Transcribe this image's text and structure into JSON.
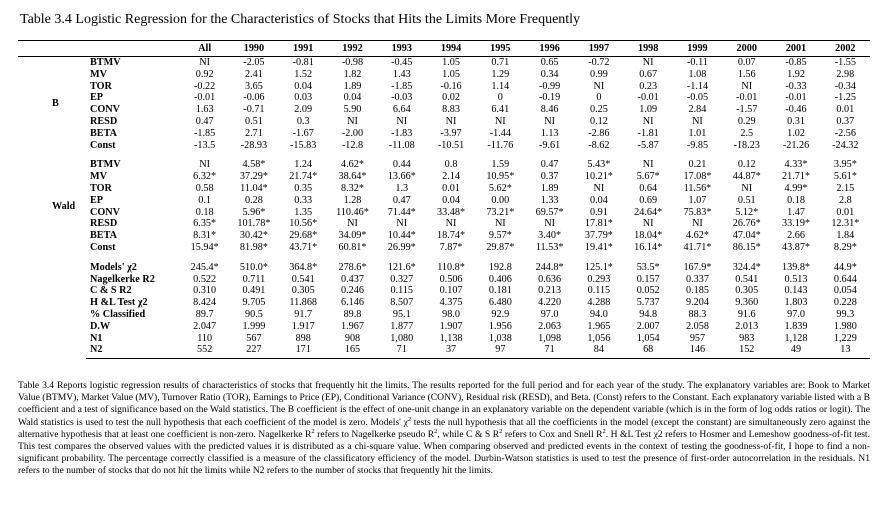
{
  "title": "Table 3.4 Logistic Regression for the Characteristics of Stocks that Hits the Limits More Frequently",
  "columns": [
    "All",
    "1990",
    "1991",
    "1992",
    "1993",
    "1994",
    "1995",
    "1996",
    "1997",
    "1998",
    "1999",
    "2000",
    "2001",
    "2002"
  ],
  "sections": [
    {
      "group": "B",
      "rows": [
        {
          "label": "BTMV",
          "cells": [
            "NI",
            "-2.05",
            "-0.81",
            "-0.98",
            "-0.45",
            "1.05",
            "0.71",
            "0.65",
            "-0.72",
            "NI",
            "-0.11",
            "0.07",
            "-0.85",
            "-1.55"
          ]
        },
        {
          "label": "MV",
          "cells": [
            "0.92",
            "2.41",
            "1.52",
            "1.82",
            "1.43",
            "1.05",
            "1.29",
            "0.34",
            "0.99",
            "0.67",
            "1.08",
            "1.56",
            "1.92",
            "2.98"
          ]
        },
        {
          "label": "TOR",
          "cells": [
            "-0.22",
            "3.65",
            "0.04",
            "1.89",
            "-1.85",
            "-0.16",
            "1.14",
            "-0.99",
            "NI",
            "0.23",
            "-1.14",
            "NI",
            "-0.33",
            "-0.34"
          ]
        },
        {
          "label": "EP",
          "cells": [
            "-0.01",
            "-0.06",
            "0.03",
            "0.04",
            "-0.03",
            "0.02",
            "0",
            "-0.19",
            "0",
            "-0.01",
            "-0.05",
            "-0.01",
            "-0.01",
            "-1.25"
          ]
        },
        {
          "label": "CONV",
          "cells": [
            "1.63",
            "-0.71",
            "2.09",
            "5.90",
            "6.64",
            "8.83",
            "6.41",
            "8.46",
            "0.25",
            "1.09",
            "2.84",
            "-1.57",
            "-0.46",
            "0.01"
          ]
        },
        {
          "label": "RESD",
          "cells": [
            "0.47",
            "0.51",
            "0.3",
            "NI",
            "NI",
            "NI",
            "NI",
            "NI",
            "0.12",
            "NI",
            "NI",
            "0.29",
            "0.31",
            "0.37"
          ]
        },
        {
          "label": "BETA",
          "cells": [
            "-1.85",
            "2.71",
            "-1.67",
            "-2.00",
            "-1.83",
            "-3.97",
            "-1.44",
            "1.13",
            "-2.86",
            "-1.81",
            "1.01",
            "2.5",
            "1.02",
            "-2.56"
          ]
        },
        {
          "label": "Const",
          "cells": [
            "-13.5",
            "-28.93",
            "-15.83",
            "-12.8",
            "-11.08",
            "-10.51",
            "-11.76",
            "-9.61",
            "-8.62",
            "-5.87",
            "-9.85",
            "-18.23",
            "-21.26",
            "-24.32"
          ]
        }
      ]
    },
    {
      "group": "Wald",
      "rows": [
        {
          "label": "BTMV",
          "cells": [
            "NI",
            "4.58*",
            "1.24",
            "4.62*",
            "0.44",
            "0.8",
            "1.59",
            "0.47",
            "5.43*",
            "NI",
            "0.21",
            "0.12",
            "4.33*",
            "3.95*"
          ]
        },
        {
          "label": "MV",
          "cells": [
            "6.32*",
            "37.29*",
            "21.74*",
            "38.64*",
            "13.66*",
            "2.14",
            "10.95*",
            "0.37",
            "10.21*",
            "5.67*",
            "17.08*",
            "44.87*",
            "21.71*",
            "5.61*"
          ]
        },
        {
          "label": "TOR",
          "cells": [
            "0.58",
            "11.04*",
            "0.35",
            "8.32*",
            "1.3",
            "0.01",
            "5.62*",
            "1.89",
            "NI",
            "0.64",
            "11.56*",
            "NI",
            "4.99*",
            "2.15"
          ]
        },
        {
          "label": "EP",
          "cells": [
            "0.1",
            "0.28",
            "0.33",
            "1.28",
            "0.47",
            "0.04",
            "0.00",
            "1.33",
            "0.04",
            "0.69",
            "1.07",
            "0.51",
            "0.18",
            "2.8"
          ]
        },
        {
          "label": "CONV",
          "cells": [
            "0.18",
            "5.96*",
            "1.35",
            "110.46*",
            "71.44*",
            "33.48*",
            "73.21*",
            "69.57*",
            "0.91",
            "24.64*",
            "75.83*",
            "5.12*",
            "1.47",
            "0.01"
          ]
        },
        {
          "label": "RESD",
          "cells": [
            "6.35*",
            "101.78*",
            "10.56*",
            "NI",
            "NI",
            "NI",
            "NI",
            "NI",
            "17.81*",
            "NI",
            "NI",
            "26.76*",
            "33.19*",
            "12.31*"
          ]
        },
        {
          "label": "BETA",
          "cells": [
            "8.31*",
            "30.42*",
            "29.68*",
            "34.09*",
            "10.44*",
            "18.74*",
            "9.57*",
            "3.40*",
            "37.79*",
            "18.04*",
            "4.62*",
            "47.04*",
            "2.66",
            "1.84"
          ]
        },
        {
          "label": "Const",
          "cells": [
            "15.94*",
            "81.98*",
            "43.71*",
            "60.81*",
            "26.99*",
            "7.87*",
            "29.87*",
            "11.53*",
            "19.41*",
            "16.14*",
            "41.71*",
            "86.15*",
            "43.87*",
            "8.29*"
          ]
        }
      ]
    },
    {
      "rows": [
        {
          "label": "Models' χ2",
          "cells": [
            "245.4*",
            "510.0*",
            "364.8*",
            "278.6*",
            "121.6*",
            "110.8*",
            "192.8",
            "244.8*",
            "125.1*",
            "53.5*",
            "167.9*",
            "324.4*",
            "139.8*",
            "44.9*"
          ]
        },
        {
          "label": "Nagelkerke R2",
          "cells": [
            "0.522",
            "0.711",
            "0.541",
            "0.437",
            "0.327",
            "0.506",
            "0.406",
            "0.636",
            "0.293",
            "0.157",
            "0.337",
            "0.541",
            "0.513",
            "0.644"
          ]
        },
        {
          "label": "C & S R2",
          "cells": [
            "0.310",
            "0.491",
            "0.305",
            "0.246",
            "0.115",
            "0.107",
            "0.181",
            "0.213",
            "0.115",
            "0.052",
            "0.185",
            "0.305",
            "0.143",
            "0.054"
          ]
        },
        {
          "label": "H &L Test χ2",
          "cells": [
            "8.424",
            "9.705",
            "11.868",
            "6.146",
            "8.507",
            "4.375",
            "6.480",
            "4.220",
            "4.288",
            "5.737",
            "9.204",
            "9.360",
            "1.803",
            "0.228"
          ]
        },
        {
          "label": "% Classified",
          "cells": [
            "89.7",
            "90.5",
            "91.7",
            "89.8",
            "95.1",
            "98.0",
            "92.9",
            "97.0",
            "94.0",
            "94.8",
            "88.3",
            "91.6",
            "97.0",
            "99.3"
          ]
        },
        {
          "label": "D.W",
          "cells": [
            "2.047",
            "1.999",
            "1.917",
            "1.967",
            "1.877",
            "1.907",
            "1.956",
            "2.063",
            "1.965",
            "2.007",
            "2.058",
            "2.013",
            "1.839",
            "1.980"
          ]
        },
        {
          "label": "N1",
          "cells": [
            "110",
            "567",
            "898",
            "908",
            "1,080",
            "1,138",
            "1,038",
            "1,098",
            "1,056",
            "1,054",
            "957",
            "983",
            "1,128",
            "1,229"
          ]
        },
        {
          "label": "N2",
          "cells": [
            "552",
            "227",
            "171",
            "165",
            "71",
            "37",
            "97",
            "71",
            "84",
            "68",
            "146",
            "152",
            "49",
            "13"
          ]
        }
      ]
    }
  ],
  "note": [
    {
      "text": "Table 3.4 Reports logistic regression results of characteristics of stocks that frequently hit the limits. The results reported for the full period and for each year of the study. The explanatory variables are: Book to Market Value (BTMV), Market Value (MV), Turnover Ratio (TOR), Earnings to Price (EP), Conditional Variance (CONV), Residual risk (RESD), and Beta. (Const) refers to the Constant. Each explanatory variable listed with a B coefficient and a test of significance based on the Wald statistics. The B coefficient is the effect of one-unit change in an explanatory variable on the dependent variable (which is in the form of log odds ratios or logit). The Wald statistics is used to test the null hypothesis that each coefficient of the model is zero. Models' χ"
    },
    {
      "sup": "2"
    },
    {
      "text": " tests the null hypothesis that all the coefficients in the model (except the constant) are simultaneously zero against the alternative hypothesis that at least one coefficient is non-zero.  Nagelkerke R"
    },
    {
      "sup": "2"
    },
    {
      "text": " refers to Nagelkerke pseudo R"
    },
    {
      "sup": "2"
    },
    {
      "text": ", while C & S R"
    },
    {
      "sup": "2"
    },
    {
      "text": " refers to Cox and Snell R"
    },
    {
      "sup": "2"
    },
    {
      "text": ". H &L Test χ2 refers to Hosmer and Lemeshow goodness-of-fit test. This test compares the observed values with the predicted values it is distributed as a chi-square value. When comparing observed and predicted events in the context of testing the goodness-of-fit, I hope to find a non-significant probability. The percentage correctly classified is a measure of the classificatory efficiency of the model. Durbin-Watson statistics is used to test the presence of first-order autocorrelation in the residuals. N1 refers to the number of stocks that do not hit the limits while N2 refers to the number of stocks that frequently hit the limits."
    }
  ]
}
